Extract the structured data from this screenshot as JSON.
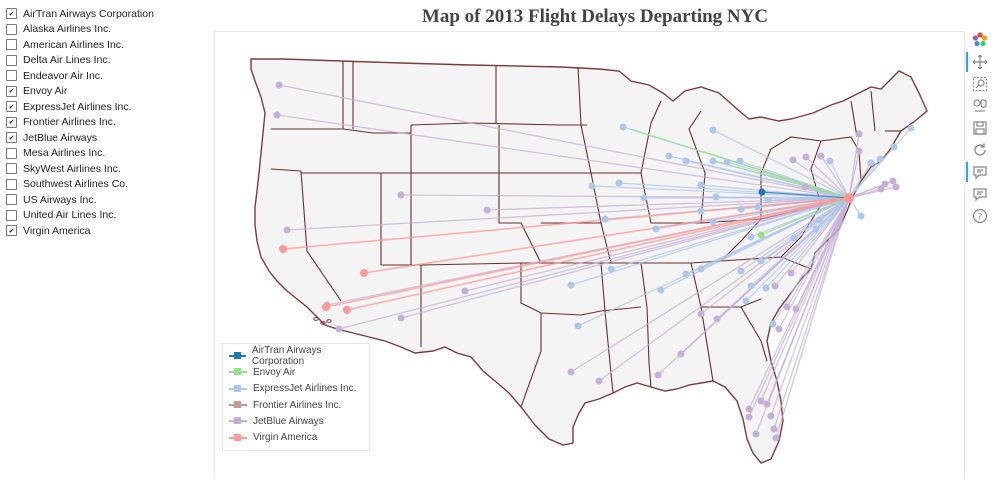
{
  "title": "Map of 2013 Flight Delays Departing NYC",
  "airlines": [
    {
      "label": "AirTran Airways Corporation",
      "checked": true
    },
    {
      "label": "Alaska Airlines Inc.",
      "checked": false
    },
    {
      "label": "American Airlines Inc.",
      "checked": false
    },
    {
      "label": "Delta Air Lines Inc.",
      "checked": false
    },
    {
      "label": "Endeavor Air Inc.",
      "checked": false
    },
    {
      "label": "Envoy Air",
      "checked": true
    },
    {
      "label": "ExpressJet Airlines Inc.",
      "checked": true
    },
    {
      "label": "Frontier Airlines Inc.",
      "checked": true
    },
    {
      "label": "JetBlue Airways",
      "checked": true
    },
    {
      "label": "Mesa Airlines Inc.",
      "checked": false
    },
    {
      "label": "SkyWest Airlines Inc.",
      "checked": false
    },
    {
      "label": "Southwest Airlines Co.",
      "checked": false
    },
    {
      "label": "US Airways Inc.",
      "checked": false
    },
    {
      "label": "United Air Lines Inc.",
      "checked": false
    },
    {
      "label": "Virgin America",
      "checked": true
    }
  ],
  "legend": [
    {
      "label": "AirTran Airways Corporation",
      "color": "#1f77b4"
    },
    {
      "label": "Envoy Air",
      "color": "#98df8a"
    },
    {
      "label": "ExpressJet Airlines Inc.",
      "color": "#aec7e8"
    },
    {
      "label": "Frontier Airlines Inc.",
      "color": "#c49c94"
    },
    {
      "label": "JetBlue Airways",
      "color": "#c5b0d5"
    },
    {
      "label": "Virgin America",
      "color": "#ff9896"
    }
  ],
  "toolbar": [
    "bokeh-logo-icon",
    "pan-icon",
    "box-zoom-icon",
    "wheel-zoom-icon",
    "save-icon",
    "reset-icon",
    "hover-icon",
    "hover-icon",
    "help-icon"
  ],
  "map_colors": {
    "land": "#f5f4f4",
    "border": "#7b3d3d",
    "state_line": "#6b2e2e"
  }
}
